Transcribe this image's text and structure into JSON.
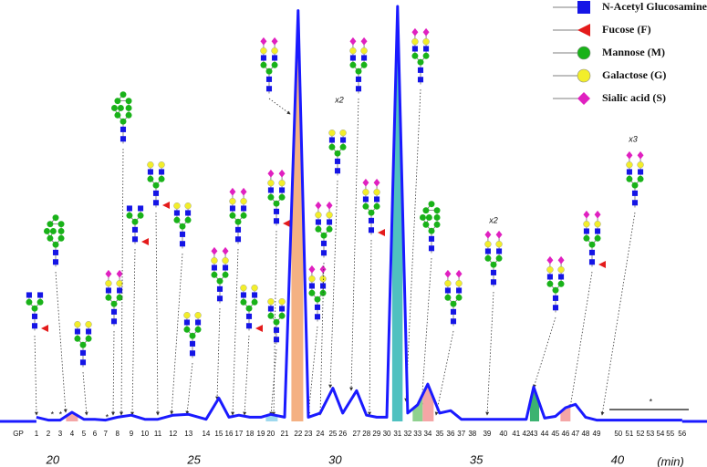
{
  "chart_data": {
    "type": "line",
    "color": "#1a1aff",
    "xlim": [
      18.13,
      43.17
    ],
    "xticks": [
      20,
      25,
      30,
      35,
      40
    ],
    "x_label": "(min)",
    "gp_label": "GP",
    "x": [
      19.42,
      19.84,
      20.26,
      20.68,
      21.1,
      21.49,
      21.87,
      22.29,
      22.78,
      23.26,
      23.72,
      24.26,
      24.81,
      25.43,
      25.88,
      26.24,
      26.59,
      26.98,
      27.37,
      27.72,
      28.21,
      28.69,
      29.05,
      29.47,
      29.92,
      30.27,
      30.76,
      31.11,
      31.47,
      31.83,
      32.21,
      32.57,
      32.92,
      33.28,
      33.7,
      34.09,
      34.47,
      34.86,
      35.38,
      35.96,
      36.41,
      36.77,
      37.03,
      37.42,
      37.8,
      38.16,
      38.51,
      38.87,
      39.26,
      40.03,
      40.42,
      40.81,
      41.16,
      41.52,
      41.87,
      42.29
    ],
    "values": [
      1,
      0.3,
      0.3,
      2.2,
      0.5,
      0.5,
      0.3,
      1,
      1.5,
      0.5,
      0.5,
      1.5,
      1.7,
      0.5,
      5.6,
      1,
      1.5,
      1,
      1,
      1.7,
      1,
      99,
      1,
      2,
      8,
      2,
      7.4,
      1.5,
      1,
      1,
      100,
      2,
      4,
      9,
      2,
      2.6,
      0.5,
      0.5,
      0.5,
      0.5,
      0.5,
      0.5,
      8.3,
      0.8,
      1.2,
      3.3,
      4.1,
      1,
      0.3,
      0.3,
      0.3,
      0.3,
      0.3,
      0.3,
      0.3,
      0.3
    ],
    "peak_labels": [
      "1",
      "2",
      "3",
      "4",
      "5",
      "6",
      "7",
      "8",
      "9",
      "10",
      "11",
      "12",
      "13",
      "14",
      "15",
      "16",
      "17",
      "18",
      "19",
      "20",
      "21",
      "22",
      "23",
      "24",
      "25",
      "26",
      "27",
      "28",
      "29",
      "30",
      "31",
      "32",
      "33",
      "34",
      "35",
      "36",
      "37",
      "38",
      "39",
      "40",
      "41",
      "42",
      "43",
      "44",
      "45",
      "46",
      "47",
      "48",
      "49",
      "50",
      "51",
      "52",
      "53",
      "54",
      "55",
      "56"
    ],
    "peak_fills": [
      null,
      null,
      null,
      "#f4a6a6",
      null,
      null,
      null,
      null,
      null,
      null,
      null,
      null,
      null,
      null,
      null,
      null,
      null,
      null,
      null,
      "#9ed8ee",
      null,
      "#f4b183",
      null,
      null,
      null,
      null,
      null,
      null,
      null,
      null,
      "#4fc1c0",
      null,
      "#8fd18f",
      "#f4a6a6",
      null,
      null,
      null,
      null,
      null,
      null,
      null,
      null,
      "#3cb371",
      null,
      null,
      "#f4a6a6",
      null,
      null,
      null,
      null,
      null,
      null,
      null,
      null,
      null,
      null
    ],
    "annotations": [
      "x2",
      "x2",
      "x3",
      "*",
      "*",
      "*",
      "*"
    ],
    "legend": [
      {
        "name": "N-Acetyl Glucosamine (N)",
        "color": "#1515e6",
        "shape": "square"
      },
      {
        "name": "Fucose (F)",
        "color": "#e41b1b",
        "shape": "triangle"
      },
      {
        "name": "Mannose (M)",
        "color": "#19b219",
        "shape": "circle"
      },
      {
        "name": "Galactose (G)",
        "color": "#f2ee2a",
        "shape": "circle"
      },
      {
        "name": "Sialic acid (S)",
        "color": "#e020c0",
        "shape": "diamond"
      }
    ]
  }
}
